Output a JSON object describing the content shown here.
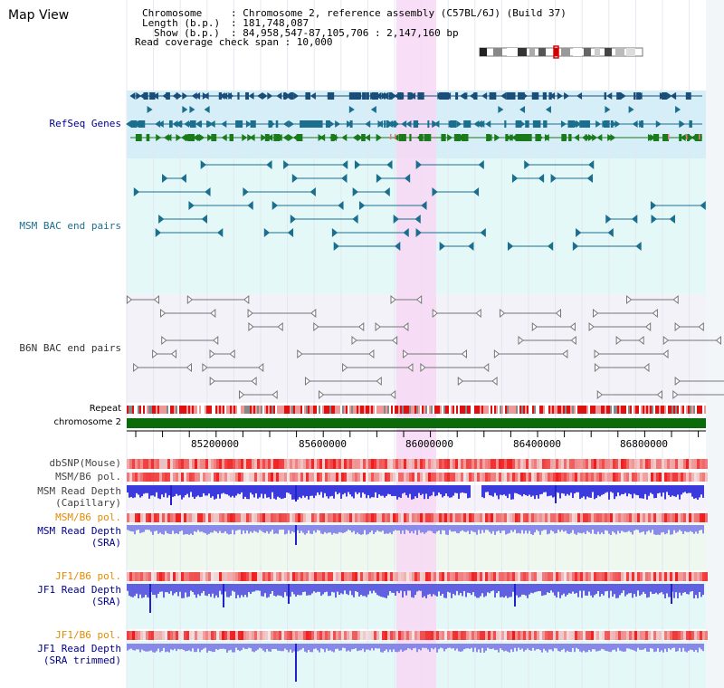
{
  "title": "Map View",
  "header": {
    "chromosome_label": "Chromosome",
    "chromosome_value": ": Chromosome 2, reference assembly (C57BL/6J) (Build 37)",
    "length_label": "Length (b.p.)",
    "length_value": ": 181,748,087",
    "show_label": "Show (b.p.)",
    "show_value": ": 84,958,547-87,105,706 : 2,147,160 bp",
    "coverage_text": "Read coverage check span : 10,000"
  },
  "tracks": {
    "refseq": "RefSeq Genes",
    "msm_bac": "MSM BAC end pairs",
    "b6n_bac": "B6N BAC end pairs",
    "repeat": "Repeat",
    "chromosome": "chromosome 2",
    "dbsnp": "dbSNP(Mouse)",
    "msm_b6_pol_1": "MSM/B6 pol.",
    "msm_depth_cap_1": "MSM Read Depth",
    "msm_depth_cap_2": "(Capillary)",
    "msm_b6_pol_2": "MSM/B6 pol.",
    "msm_depth_sra_1": "MSM Read Depth",
    "msm_depth_sra_2": "(SRA)",
    "jf1_b6_pol_1": "JF1/B6 pol.",
    "jf1_depth_sra_1": "JF1 Read Depth",
    "jf1_depth_sra_2": "(SRA)",
    "jf1_b6_pol_2": "JF1/B6 pol.",
    "jf1_depth_trim_1": "JF1 Read Depth",
    "jf1_depth_trim_2": "(SRA trimmed)"
  },
  "axis": {
    "ticks": [
      "85200000",
      "85600000",
      "86000000",
      "86400000",
      "86800000"
    ]
  },
  "colors": {
    "highlight": "#f7d8f4",
    "refseq_bg": "#d6eef8",
    "msm_bg": "#e4f8f8",
    "b6n_bg": "#f2f2f8",
    "depth_bg": "#f6f2fb",
    "sra_bg": "#eef8ee",
    "gene_dark": "#1a4d78",
    "gene_teal": "#1b6e8e",
    "gene_green": "#1b7a1b",
    "bac_line": "#1b6e8e",
    "b6n_line": "#777777",
    "chromosome_bar": "#0b6b0b",
    "label_blue": "#00008b",
    "label_teal": "#1b6e8e",
    "label_orange": "#e58b00",
    "label_gray": "#333333"
  }
}
